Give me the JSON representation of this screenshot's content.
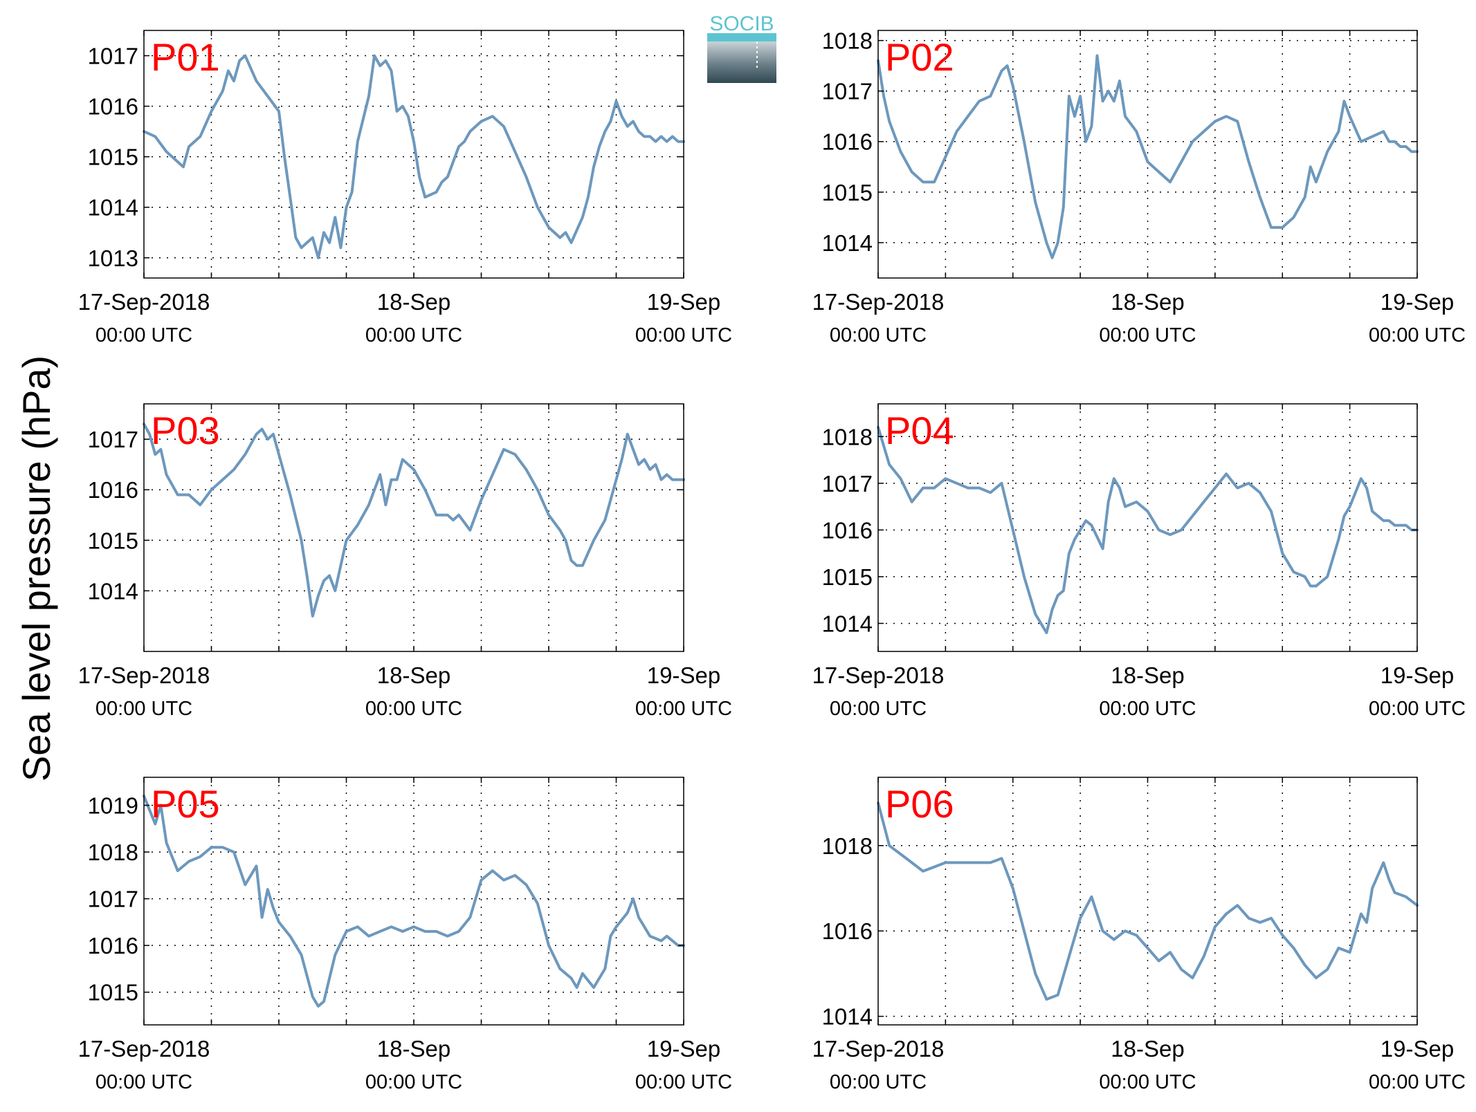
{
  "figure": {
    "ylabel": "Sea level pressure (hPa)",
    "logo": {
      "text": "SOCIB",
      "accent_color": "#5ec3d0",
      "dark_color": "#2f4852"
    },
    "line_color": "#6d98bd",
    "label_color": "#ff0000"
  },
  "chart_data": [
    {
      "type": "line",
      "title": "P01",
      "grid": true,
      "xlim": [
        0,
        48
      ],
      "ylim": [
        1012.6,
        1017.5
      ],
      "yticks": [
        1013,
        1014,
        1015,
        1016,
        1017
      ],
      "xticks": [
        0,
        6,
        12,
        18,
        24,
        30,
        36,
        42,
        48
      ],
      "xtick_labels": [
        {
          "x": 0,
          "main": "17-Sep-2018",
          "sub": "00:00 UTC"
        },
        {
          "x": 24,
          "main": "18-Sep",
          "sub": "00:00 UTC"
        },
        {
          "x": 48,
          "main": "19-Sep",
          "sub": "00:00 UTC"
        }
      ],
      "x": [
        0,
        1,
        2,
        3,
        3.5,
        4,
        5,
        6,
        7,
        7.5,
        8,
        8.5,
        9,
        10,
        11,
        12,
        12.5,
        13,
        13.5,
        14,
        14.5,
        15,
        15.5,
        16,
        16.5,
        17,
        17.5,
        18,
        18.5,
        19,
        20,
        20.5,
        21,
        21.5,
        22,
        22.5,
        23,
        23.5,
        24,
        24.5,
        25,
        26,
        26.5,
        27,
        28,
        28.5,
        29,
        30,
        31,
        32,
        33,
        34,
        35,
        36,
        37,
        37.5,
        38,
        39,
        39.5,
        40,
        40.5,
        41,
        41.5,
        42,
        42.5,
        43,
        43.5,
        44,
        44.5,
        45,
        45.5,
        46,
        46.5,
        47,
        47.5,
        48
      ],
      "y": [
        1015.5,
        1015.4,
        1015.1,
        1014.9,
        1014.8,
        1015.2,
        1015.4,
        1015.9,
        1016.3,
        1016.7,
        1016.5,
        1016.9,
        1017.0,
        1016.5,
        1016.2,
        1015.9,
        1015.0,
        1014.2,
        1013.4,
        1013.2,
        1013.3,
        1013.4,
        1013.0,
        1013.5,
        1013.3,
        1013.8,
        1013.2,
        1014.0,
        1014.3,
        1015.3,
        1016.2,
        1017.0,
        1016.8,
        1016.9,
        1016.7,
        1015.9,
        1016.0,
        1015.8,
        1015.3,
        1014.6,
        1014.2,
        1014.3,
        1014.5,
        1014.6,
        1015.2,
        1015.3,
        1015.5,
        1015.7,
        1015.8,
        1015.6,
        1015.1,
        1014.6,
        1014.0,
        1013.6,
        1013.4,
        1013.5,
        1013.3,
        1013.8,
        1014.2,
        1014.8,
        1015.2,
        1015.5,
        1015.7,
        1016.1,
        1015.8,
        1015.6,
        1015.7,
        1015.5,
        1015.4,
        1015.4,
        1015.3,
        1015.4,
        1015.3,
        1015.4,
        1015.3,
        1015.3
      ]
    },
    {
      "type": "line",
      "title": "P02",
      "grid": true,
      "xlim": [
        0,
        48
      ],
      "ylim": [
        1013.3,
        1018.2
      ],
      "yticks": [
        1014,
        1015,
        1016,
        1017,
        1018
      ],
      "xticks": [
        0,
        6,
        12,
        18,
        24,
        30,
        36,
        42,
        48
      ],
      "xtick_labels": [
        {
          "x": 0,
          "main": "17-Sep-2018",
          "sub": "00:00 UTC"
        },
        {
          "x": 24,
          "main": "18-Sep",
          "sub": "00:00 UTC"
        },
        {
          "x": 48,
          "main": "19-Sep",
          "sub": "00:00 UTC"
        }
      ],
      "x": [
        0,
        0.5,
        1,
        2,
        3,
        4,
        5,
        6,
        7,
        8,
        9,
        10,
        11,
        11.5,
        12,
        13,
        14,
        15,
        15.5,
        16,
        16.5,
        17,
        17.5,
        18,
        18.5,
        19,
        19.5,
        20,
        20.5,
        21,
        21.5,
        22,
        23,
        24,
        25,
        26,
        27,
        28,
        29,
        30,
        31,
        32,
        33,
        34,
        35,
        36,
        37,
        38,
        38.5,
        39,
        40,
        41,
        41.5,
        42,
        43,
        44,
        45,
        45.5,
        46,
        46.5,
        47,
        47.5,
        48
      ],
      "y": [
        1017.6,
        1016.9,
        1016.4,
        1015.8,
        1015.4,
        1015.2,
        1015.2,
        1015.7,
        1016.2,
        1016.5,
        1016.8,
        1016.9,
        1017.4,
        1017.5,
        1017.1,
        1016.0,
        1014.8,
        1014.0,
        1013.7,
        1014.0,
        1014.7,
        1016.9,
        1016.5,
        1016.9,
        1016.0,
        1016.3,
        1017.7,
        1016.8,
        1017.0,
        1016.8,
        1017.2,
        1016.5,
        1016.2,
        1015.6,
        1015.4,
        1015.2,
        1015.6,
        1016.0,
        1016.2,
        1016.4,
        1016.5,
        1016.4,
        1015.6,
        1014.9,
        1014.3,
        1014.3,
        1014.5,
        1014.9,
        1015.5,
        1015.2,
        1015.8,
        1016.2,
        1016.8,
        1016.5,
        1016.0,
        1016.1,
        1016.2,
        1016.0,
        1016.0,
        1015.9,
        1015.9,
        1015.8,
        1015.8
      ]
    },
    {
      "type": "line",
      "title": "P03",
      "grid": true,
      "xlim": [
        0,
        48
      ],
      "ylim": [
        1012.8,
        1017.7
      ],
      "yticks": [
        1014,
        1015,
        1016,
        1017
      ],
      "xticks": [
        0,
        6,
        12,
        18,
        24,
        30,
        36,
        42,
        48
      ],
      "xtick_labels": [
        {
          "x": 0,
          "main": "17-Sep-2018",
          "sub": "00:00 UTC"
        },
        {
          "x": 24,
          "main": "18-Sep",
          "sub": "00:00 UTC"
        },
        {
          "x": 48,
          "main": "19-Sep",
          "sub": "00:00 UTC"
        }
      ],
      "x": [
        0,
        0.5,
        1,
        1.5,
        2,
        3,
        4,
        5,
        6,
        7,
        8,
        9,
        10,
        10.5,
        11,
        11.5,
        12,
        13,
        14,
        14.5,
        15,
        15.5,
        16,
        16.5,
        17,
        18,
        19,
        20,
        21,
        21.5,
        22,
        22.5,
        23,
        23.5,
        24,
        25,
        26,
        27,
        27.5,
        28,
        29,
        30,
        31,
        32,
        33,
        34,
        35,
        36,
        37,
        37.5,
        38,
        38.5,
        39,
        40,
        41,
        42,
        42.5,
        43,
        43.5,
        44,
        44.5,
        45,
        45.5,
        46,
        46.5,
        47,
        47.5,
        48
      ],
      "y": [
        1017.3,
        1017.1,
        1016.7,
        1016.8,
        1016.3,
        1015.9,
        1015.9,
        1015.7,
        1016.0,
        1016.2,
        1016.4,
        1016.7,
        1017.1,
        1017.2,
        1017.0,
        1017.1,
        1016.7,
        1015.9,
        1015.0,
        1014.3,
        1013.5,
        1013.9,
        1014.2,
        1014.3,
        1014.0,
        1015.0,
        1015.3,
        1015.7,
        1016.3,
        1015.7,
        1016.2,
        1016.2,
        1016.6,
        1016.5,
        1016.4,
        1016.0,
        1015.5,
        1015.5,
        1015.4,
        1015.5,
        1015.2,
        1015.8,
        1016.3,
        1016.8,
        1016.7,
        1016.4,
        1016.0,
        1015.5,
        1015.2,
        1015.0,
        1014.6,
        1014.5,
        1014.5,
        1015.0,
        1015.4,
        1016.2,
        1016.6,
        1017.1,
        1016.8,
        1016.5,
        1016.6,
        1016.4,
        1016.5,
        1016.2,
        1016.3,
        1016.2,
        1016.2,
        1016.2
      ]
    },
    {
      "type": "line",
      "title": "P04",
      "grid": true,
      "xlim": [
        0,
        48
      ],
      "ylim": [
        1013.4,
        1018.7
      ],
      "yticks": [
        1014,
        1015,
        1016,
        1017,
        1018
      ],
      "xticks": [
        0,
        6,
        12,
        18,
        24,
        30,
        36,
        42,
        48
      ],
      "xtick_labels": [
        {
          "x": 0,
          "main": "17-Sep-2018",
          "sub": "00:00 UTC"
        },
        {
          "x": 24,
          "main": "18-Sep",
          "sub": "00:00 UTC"
        },
        {
          "x": 48,
          "main": "19-Sep",
          "sub": "00:00 UTC"
        }
      ],
      "x": [
        0,
        0.5,
        1,
        2,
        3,
        4,
        5,
        6,
        7,
        8,
        9,
        10,
        11,
        12,
        13,
        14,
        15,
        15.5,
        16,
        16.5,
        17,
        17.5,
        18,
        18.5,
        19,
        20,
        20.5,
        21,
        21.5,
        22,
        23,
        24,
        25,
        26,
        27,
        28,
        29,
        30,
        31,
        32,
        33,
        34,
        35,
        36,
        37,
        38,
        38.5,
        39,
        40,
        41,
        41.5,
        42,
        43,
        43.5,
        44,
        45,
        45.5,
        46,
        46.5,
        47,
        47.5,
        48
      ],
      "y": [
        1018.2,
        1017.8,
        1017.4,
        1017.1,
        1016.6,
        1016.9,
        1016.9,
        1017.1,
        1017.0,
        1016.9,
        1016.9,
        1016.8,
        1017.0,
        1016.0,
        1015.0,
        1014.2,
        1013.8,
        1014.3,
        1014.6,
        1014.7,
        1015.5,
        1015.8,
        1016.0,
        1016.2,
        1016.1,
        1015.6,
        1016.6,
        1017.1,
        1016.9,
        1016.5,
        1016.6,
        1016.4,
        1016.0,
        1015.9,
        1016.0,
        1016.3,
        1016.6,
        1016.9,
        1017.2,
        1016.9,
        1017.0,
        1016.8,
        1016.4,
        1015.5,
        1015.1,
        1015.0,
        1014.8,
        1014.8,
        1015.0,
        1015.8,
        1016.3,
        1016.5,
        1017.1,
        1016.9,
        1016.4,
        1016.2,
        1016.2,
        1016.1,
        1016.1,
        1016.1,
        1016.0,
        1016.0
      ]
    },
    {
      "type": "line",
      "title": "P05",
      "grid": true,
      "xlim": [
        0,
        48
      ],
      "ylim": [
        1014.3,
        1019.6
      ],
      "yticks": [
        1015,
        1016,
        1017,
        1018,
        1019
      ],
      "xticks": [
        0,
        6,
        12,
        18,
        24,
        30,
        36,
        42,
        48
      ],
      "xtick_labels": [
        {
          "x": 0,
          "main": "17-Sep-2018",
          "sub": "00:00 UTC"
        },
        {
          "x": 24,
          "main": "18-Sep",
          "sub": "00:00 UTC"
        },
        {
          "x": 48,
          "main": "19-Sep",
          "sub": "00:00 UTC"
        }
      ],
      "x": [
        0,
        0.5,
        1,
        1.5,
        2,
        3,
        4,
        5,
        6,
        7,
        8,
        9,
        10,
        10.5,
        11,
        11.5,
        12,
        13,
        14,
        15,
        15.5,
        16,
        17,
        18,
        19,
        20,
        21,
        22,
        23,
        24,
        25,
        26,
        27,
        28,
        29,
        30,
        31,
        32,
        33,
        34,
        35,
        36,
        37,
        38,
        38.5,
        39,
        40,
        41,
        41.5,
        42,
        43,
        43.5,
        44,
        45,
        46,
        46.5,
        47,
        47.5,
        48
      ],
      "y": [
        1019.2,
        1018.9,
        1018.6,
        1019.0,
        1018.2,
        1017.6,
        1017.8,
        1017.9,
        1018.1,
        1018.1,
        1018.0,
        1017.3,
        1017.7,
        1016.6,
        1017.2,
        1016.8,
        1016.5,
        1016.2,
        1015.8,
        1014.9,
        1014.7,
        1014.8,
        1015.8,
        1016.3,
        1016.4,
        1016.2,
        1016.3,
        1016.4,
        1016.3,
        1016.4,
        1016.3,
        1016.3,
        1016.2,
        1016.3,
        1016.6,
        1017.4,
        1017.6,
        1017.4,
        1017.5,
        1017.3,
        1016.9,
        1016.0,
        1015.5,
        1015.3,
        1015.1,
        1015.4,
        1015.1,
        1015.5,
        1016.2,
        1016.4,
        1016.7,
        1017.0,
        1016.6,
        1016.2,
        1016.1,
        1016.2,
        1016.1,
        1016.0,
        1016.0
      ]
    },
    {
      "type": "line",
      "title": "P06",
      "grid": true,
      "xlim": [
        0,
        48
      ],
      "ylim": [
        1013.8,
        1019.6
      ],
      "yticks": [
        1014,
        1016,
        1018
      ],
      "xticks": [
        0,
        6,
        12,
        18,
        24,
        30,
        36,
        42,
        48
      ],
      "xtick_labels": [
        {
          "x": 0,
          "main": "17-Sep-2018",
          "sub": "00:00 UTC"
        },
        {
          "x": 24,
          "main": "18-Sep",
          "sub": "00:00 UTC"
        },
        {
          "x": 48,
          "main": "19-Sep",
          "sub": "00:00 UTC"
        }
      ],
      "x": [
        0,
        0.5,
        1,
        2,
        3,
        4,
        5,
        6,
        7,
        8,
        9,
        10,
        11,
        12,
        13,
        14,
        15,
        16,
        17,
        18,
        19,
        20,
        21,
        22,
        23,
        24,
        25,
        26,
        27,
        28,
        29,
        30,
        31,
        32,
        33,
        34,
        35,
        36,
        37,
        38,
        39,
        40,
        41,
        42,
        43,
        43.5,
        44,
        45,
        45.5,
        46,
        47,
        48
      ],
      "y": [
        1019.0,
        1018.5,
        1018.0,
        1017.8,
        1017.6,
        1017.4,
        1017.5,
        1017.6,
        1017.6,
        1017.6,
        1017.6,
        1017.6,
        1017.7,
        1017.0,
        1016.0,
        1015.0,
        1014.4,
        1014.5,
        1015.4,
        1016.3,
        1016.8,
        1016.0,
        1015.8,
        1016.0,
        1015.9,
        1015.6,
        1015.3,
        1015.5,
        1015.1,
        1014.9,
        1015.4,
        1016.1,
        1016.4,
        1016.6,
        1016.3,
        1016.2,
        1016.3,
        1015.9,
        1015.6,
        1015.2,
        1014.9,
        1015.1,
        1015.6,
        1015.5,
        1016.4,
        1016.2,
        1017.0,
        1017.6,
        1017.2,
        1016.9,
        1016.8,
        1016.6
      ]
    }
  ]
}
